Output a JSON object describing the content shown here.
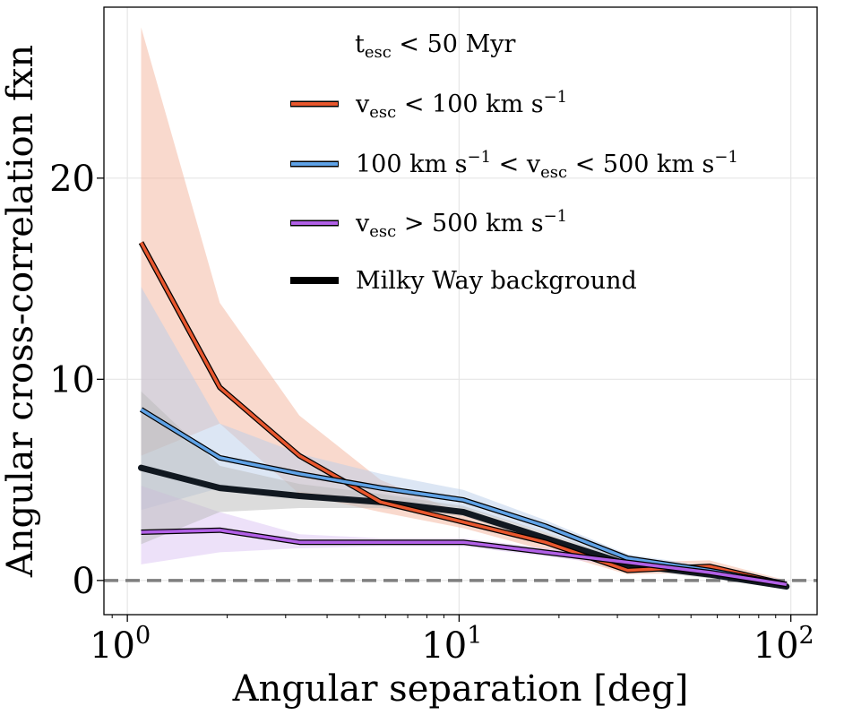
{
  "chart_data": {
    "type": "line",
    "xscale": "log",
    "xlim": [
      0.85,
      120
    ],
    "ylim": [
      -1.7,
      28.5
    ],
    "xlabel": "Angular separation [deg]",
    "ylabel": "Angular cross-correlation fxn",
    "xticks": [
      {
        "value": 1,
        "base": "10",
        "exp": "0"
      },
      {
        "value": 10,
        "base": "10",
        "exp": "1"
      },
      {
        "value": 100,
        "base": "10",
        "exp": "2"
      }
    ],
    "yticks": [
      {
        "value": 0,
        "label": "0"
      },
      {
        "value": 10,
        "label": "10"
      },
      {
        "value": 20,
        "label": "20"
      }
    ],
    "grid": true,
    "zero_line": {
      "y": 0,
      "style": "dashed",
      "color": "#7f7f7f"
    },
    "legend": {
      "placement": "top-right",
      "title": {
        "base": "t",
        "sub": "esc",
        "rest": " < 50 Myr"
      }
    },
    "x": [
      1.1,
      1.9,
      3.3,
      5.8,
      10.3,
      18.2,
      32.2,
      56.8,
      97.0
    ],
    "series": [
      {
        "name_parts": [
          {
            "t": "v"
          },
          {
            "t": "esc",
            "sub": true
          },
          {
            "t": " < 100 km s"
          },
          {
            "t": "−1",
            "sup": true
          }
        ],
        "color": "#e8572e",
        "band_color": "#f4b49c",
        "values": [
          16.8,
          9.6,
          6.2,
          3.9,
          2.9,
          1.9,
          0.5,
          0.7,
          -0.2
        ],
        "lower": [
          6.2,
          7.8,
          4.3,
          3.4,
          2.6,
          1.5,
          0.3,
          0.4,
          -0.4
        ],
        "upper": [
          27.5,
          13.8,
          8.2,
          5.0,
          3.3,
          2.3,
          0.9,
          1.0,
          0.0
        ]
      },
      {
        "name_parts": [
          {
            "t": "100 km s"
          },
          {
            "t": "−1",
            "sup": true
          },
          {
            "t": " < v"
          },
          {
            "t": "esc",
            "sub": true
          },
          {
            "t": " < 500 km s"
          },
          {
            "t": "−1",
            "sup": true
          }
        ],
        "color": "#5fa2e6",
        "band_color": "#b9cdea",
        "values": [
          8.5,
          6.1,
          5.3,
          4.6,
          4.0,
          2.7,
          1.1,
          0.5,
          -0.2
        ],
        "lower": [
          3.5,
          4.6,
          4.4,
          4.0,
          3.6,
          2.4,
          0.9,
          0.3,
          -0.4
        ],
        "upper": [
          14.6,
          7.8,
          6.3,
          5.3,
          4.5,
          3.0,
          1.3,
          0.7,
          0.0
        ]
      },
      {
        "name_parts": [
          {
            "t": "v"
          },
          {
            "t": "esc",
            "sub": true
          },
          {
            "t": " > 500 km s"
          },
          {
            "t": "−1",
            "sup": true
          }
        ],
        "color": "#b160e6",
        "band_color": "#dcc4f3",
        "values": [
          2.4,
          2.5,
          1.9,
          1.9,
          1.9,
          1.4,
          0.9,
          0.4,
          -0.2
        ],
        "lower": [
          0.8,
          1.4,
          1.6,
          1.7,
          1.7,
          1.2,
          0.7,
          0.2,
          -0.4
        ],
        "upper": [
          4.7,
          3.4,
          2.3,
          2.1,
          2.1,
          1.6,
          1.1,
          0.6,
          0.0
        ]
      },
      {
        "name_parts": [
          {
            "t": "Milky Way background"
          }
        ],
        "color": "#000000",
        "band_color": "#b9b9b9",
        "values": [
          5.6,
          4.6,
          4.2,
          3.9,
          3.4,
          2.1,
          0.8,
          0.3,
          -0.3
        ],
        "lower": [
          1.8,
          3.4,
          3.6,
          3.6,
          3.2,
          1.9,
          0.6,
          0.1,
          -0.4
        ],
        "upper": [
          9.4,
          5.7,
          4.8,
          4.3,
          3.7,
          2.4,
          1.0,
          0.5,
          -0.1
        ]
      }
    ]
  }
}
